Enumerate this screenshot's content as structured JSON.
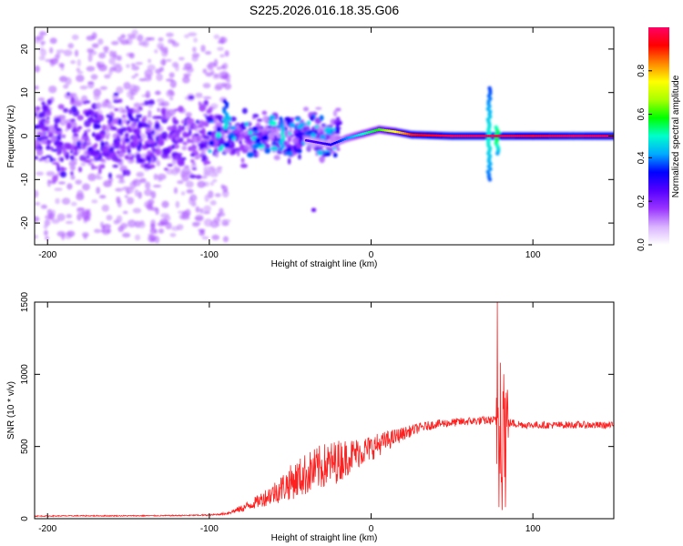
{
  "title": "S225.2026.016.18.35.G06",
  "chart_data": [
    {
      "type": "heatmap",
      "xlabel": "Height of straight line (km)",
      "ylabel": "Frequency (Hz)",
      "xlim": [
        -208,
        150
      ],
      "ylim": [
        -25,
        25
      ],
      "xticks": [
        -200,
        -100,
        0,
        100
      ],
      "yticks": [
        -20,
        -10,
        0,
        10,
        20
      ],
      "colorbar": {
        "label": "Normalized spectral amplitude",
        "range": [
          0,
          1
        ],
        "ticks": [
          "0.0",
          "0.2",
          "0.4",
          "0.6",
          "0.8"
        ],
        "tick_values": [
          0,
          0.2,
          0.4,
          0.6,
          0.8
        ],
        "colormap": [
          "#ffffff",
          "#d9b3ff",
          "#9933ff",
          "#5500ff",
          "#0000ff",
          "#00aaff",
          "#00ffcc",
          "#00ff00",
          "#aaff00",
          "#ffff00",
          "#ff8800",
          "#ff0000",
          "#ff0066"
        ]
      },
      "ridge": [
        {
          "x": -40,
          "f": -1.0,
          "amp": 0.25
        },
        {
          "x": -25,
          "f": -2.0,
          "amp": 0.3
        },
        {
          "x": -15,
          "f": -0.5,
          "amp": 0.4
        },
        {
          "x": -5,
          "f": 0.5,
          "amp": 0.5
        },
        {
          "x": 5,
          "f": 1.5,
          "amp": 0.6
        },
        {
          "x": 15,
          "f": 1.0,
          "amp": 0.75
        },
        {
          "x": 25,
          "f": 0.3,
          "amp": 0.9
        },
        {
          "x": 50,
          "f": 0.0,
          "amp": 0.98
        },
        {
          "x": 75,
          "f": 0.0,
          "amp": 0.98
        },
        {
          "x": 100,
          "f": 0.0,
          "amp": 0.95
        },
        {
          "x": 125,
          "f": 0.0,
          "amp": 0.98
        },
        {
          "x": 150,
          "f": 0.0,
          "amp": 0.97
        }
      ],
      "features": [
        {
          "x": 73,
          "f_range": [
            -10,
            11
          ],
          "amp": 0.5
        },
        {
          "x": 78,
          "f_range": [
            -4,
            2
          ],
          "amp": 0.6
        },
        {
          "x": -90,
          "f_range": [
            2,
            8
          ],
          "amp": 0.55
        },
        {
          "x": -55,
          "f_range": [
            -3,
            4
          ],
          "amp": 0.5
        },
        {
          "x": -35,
          "f_range": [
            -17,
            -17
          ],
          "amp": 0.3
        }
      ]
    },
    {
      "type": "line",
      "xlabel": "Height of straight line (km)",
      "ylabel": "SNR (10 * v/v)",
      "xlim": [
        -208,
        150
      ],
      "ylim": [
        0,
        1500
      ],
      "xticks": [
        -200,
        -100,
        0,
        100
      ],
      "yticks": [
        0,
        500,
        1000,
        1500
      ],
      "series": [
        {
          "name": "SNR",
          "color": "#ff2020",
          "x": [
            -208,
            -180,
            -150,
            -120,
            -100,
            -90,
            -80,
            -70,
            -60,
            -50,
            -40,
            -30,
            -20,
            -10,
            0,
            10,
            20,
            30,
            40,
            50,
            60,
            70,
            76,
            78,
            80,
            82,
            84,
            88,
            95,
            110,
            130,
            150
          ],
          "y": [
            18,
            20,
            20,
            22,
            25,
            35,
            70,
            120,
            180,
            250,
            310,
            360,
            400,
            450,
            490,
            540,
            590,
            630,
            655,
            665,
            675,
            680,
            682,
            680,
            678,
            670,
            665,
            660,
            650,
            648,
            650,
            645
          ],
          "noise": [
            4,
            4,
            4,
            4,
            5,
            8,
            25,
            45,
            80,
            120,
            150,
            160,
            150,
            110,
            90,
            70,
            45,
            35,
            30,
            30,
            30,
            30,
            30,
            30,
            30,
            30,
            30,
            30,
            25,
            25,
            25,
            25
          ],
          "spike": {
            "x": [
              78,
              79,
              80,
              81,
              82,
              83,
              84
            ],
            "y": [
              1500,
              80,
              1080,
              60,
              1000,
              80,
              700
            ]
          }
        }
      ]
    }
  ]
}
